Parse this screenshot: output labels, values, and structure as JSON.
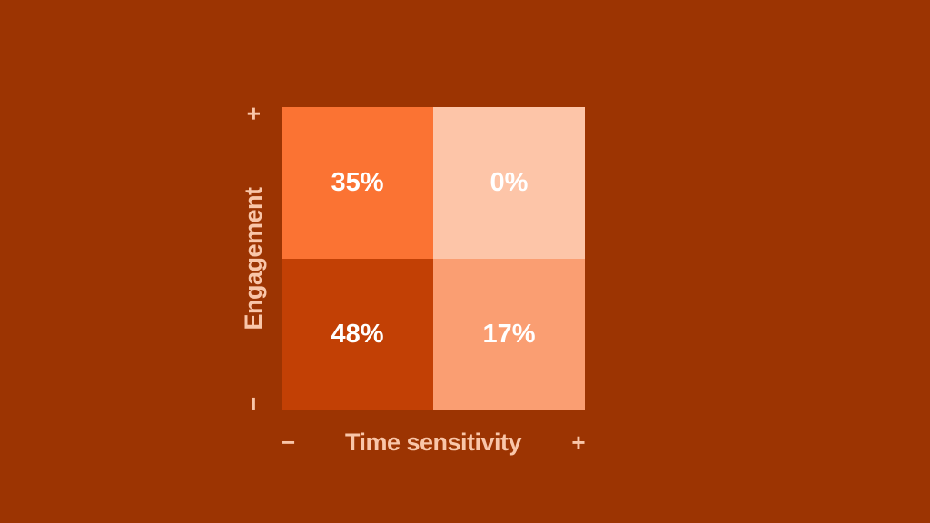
{
  "colors": {
    "background": "#9C3402",
    "axis_text": "#F9C6A9",
    "value_text": "#FFFFFF"
  },
  "chart_data": {
    "type": "heatmap",
    "title": "",
    "xlabel": "Time sensitivity",
    "ylabel": "Engagement",
    "x_tick_labels": [
      "−",
      "+"
    ],
    "y_tick_labels": [
      "−",
      "+"
    ],
    "unit": "%",
    "legend": false,
    "grid": false,
    "rows": [
      {
        "y": "+",
        "cells": [
          {
            "x": "−",
            "value": 35,
            "label": "35%",
            "color": "#FB7333"
          },
          {
            "x": "+",
            "value": 0,
            "label": "0%",
            "color": "#FDC5A8"
          }
        ]
      },
      {
        "y": "−",
        "cells": [
          {
            "x": "−",
            "value": 48,
            "label": "48%",
            "color": "#C24005"
          },
          {
            "x": "+",
            "value": 17,
            "label": "17%",
            "color": "#FA9E72"
          }
        ]
      }
    ]
  }
}
